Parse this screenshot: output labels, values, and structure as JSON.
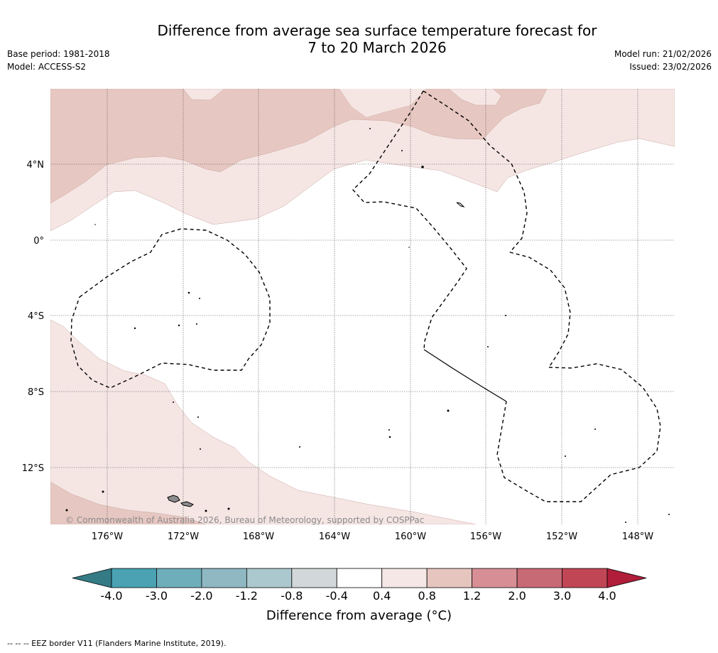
{
  "title": {
    "line1": "Difference from average sea surface temperature forecast for",
    "line2": "7 to 20 March 2026"
  },
  "meta": {
    "base_period": "Base period: 1981-2018",
    "model": "Model: ACCESS-S2",
    "model_run": "Model run: 21/02/2026",
    "issued": "Issued: 23/02/2026"
  },
  "map": {
    "lat_labels": [
      "4°N",
      "0°",
      "4°S",
      "8°S",
      "12°S"
    ],
    "lon_labels": [
      "176°W",
      "172°W",
      "168°W",
      "164°W",
      "160°W",
      "156°W",
      "152°W",
      "148°W"
    ],
    "copyright": "© Commonwealth of Australia 2026, Bureau of Meteorology, supported by COSPPac",
    "colors": {
      "anom_0_4_0_8": "#f5e6e4",
      "anom_0_8_1_2": "#e7c7c1",
      "land": "#8c8c8c"
    }
  },
  "colorbar": {
    "label": "Difference from average (°C)",
    "ticks": [
      "-4.0",
      "-3.0",
      "-2.0",
      "-1.2",
      "-0.8",
      "-0.4",
      "0.4",
      "0.8",
      "1.2",
      "2.0",
      "3.0",
      "4.0"
    ],
    "colors": [
      "#347b86",
      "#4aa2b2",
      "#6eaebb",
      "#8fb8c3",
      "#abc8ce",
      "#d2d8d9",
      "#ffffff",
      "#f5e7e5",
      "#e7c5bf",
      "#d78f95",
      "#c86a75",
      "#c14655",
      "#b01e3a"
    ]
  },
  "footer": "--  --  -- EEZ border V11 (Flanders Marine Institute, 2019)."
}
